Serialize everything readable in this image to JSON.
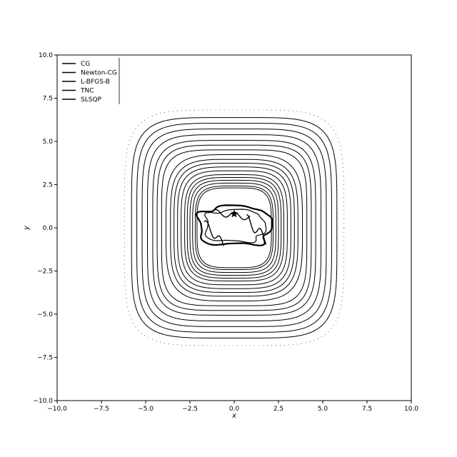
{
  "chart_data": {
    "type": "contour",
    "xlabel": "x",
    "ylabel": "y",
    "xlim": [
      -10,
      10
    ],
    "ylim": [
      -10,
      10
    ],
    "xticks": [
      -10,
      -7.5,
      -5,
      -2.5,
      0,
      2.5,
      5,
      7.5,
      10
    ],
    "yticks": [
      -10,
      -7.5,
      -5,
      -2.5,
      0,
      2.5,
      5,
      7.5,
      10
    ],
    "xtick_labels": [
      "−10.0",
      "−7.5",
      "−5.0",
      "−2.5",
      "0.0",
      "2.5",
      "5.0",
      "7.5",
      "10.0"
    ],
    "ytick_labels": [
      "−10.0",
      "−7.5",
      "−5.0",
      "−2.5",
      "0.0",
      "2.5",
      "5.0",
      "7.5",
      "10.0"
    ],
    "grid": false,
    "legend": {
      "position": "top-left",
      "entries": [
        "CG",
        "Newton-CG",
        "L-BFGS-B",
        "TNC",
        "SLSQP"
      ]
    },
    "minimum_marker": {
      "symbol": "star",
      "x": 0.0,
      "y": 0.8
    },
    "contour_half_widths": [
      6.2,
      5.8,
      5.5,
      5.2,
      4.9,
      4.6,
      4.35,
      4.1,
      3.85,
      3.6,
      3.4,
      3.2,
      3.0,
      2.8,
      2.65,
      2.5,
      2.35,
      2.2,
      2.1
    ],
    "inner_region": {
      "x_range": [
        -2.0,
        2.0
      ],
      "y_range": [
        -1.0,
        1.2
      ]
    },
    "line_color": "#000000",
    "background": "#ffffff"
  }
}
